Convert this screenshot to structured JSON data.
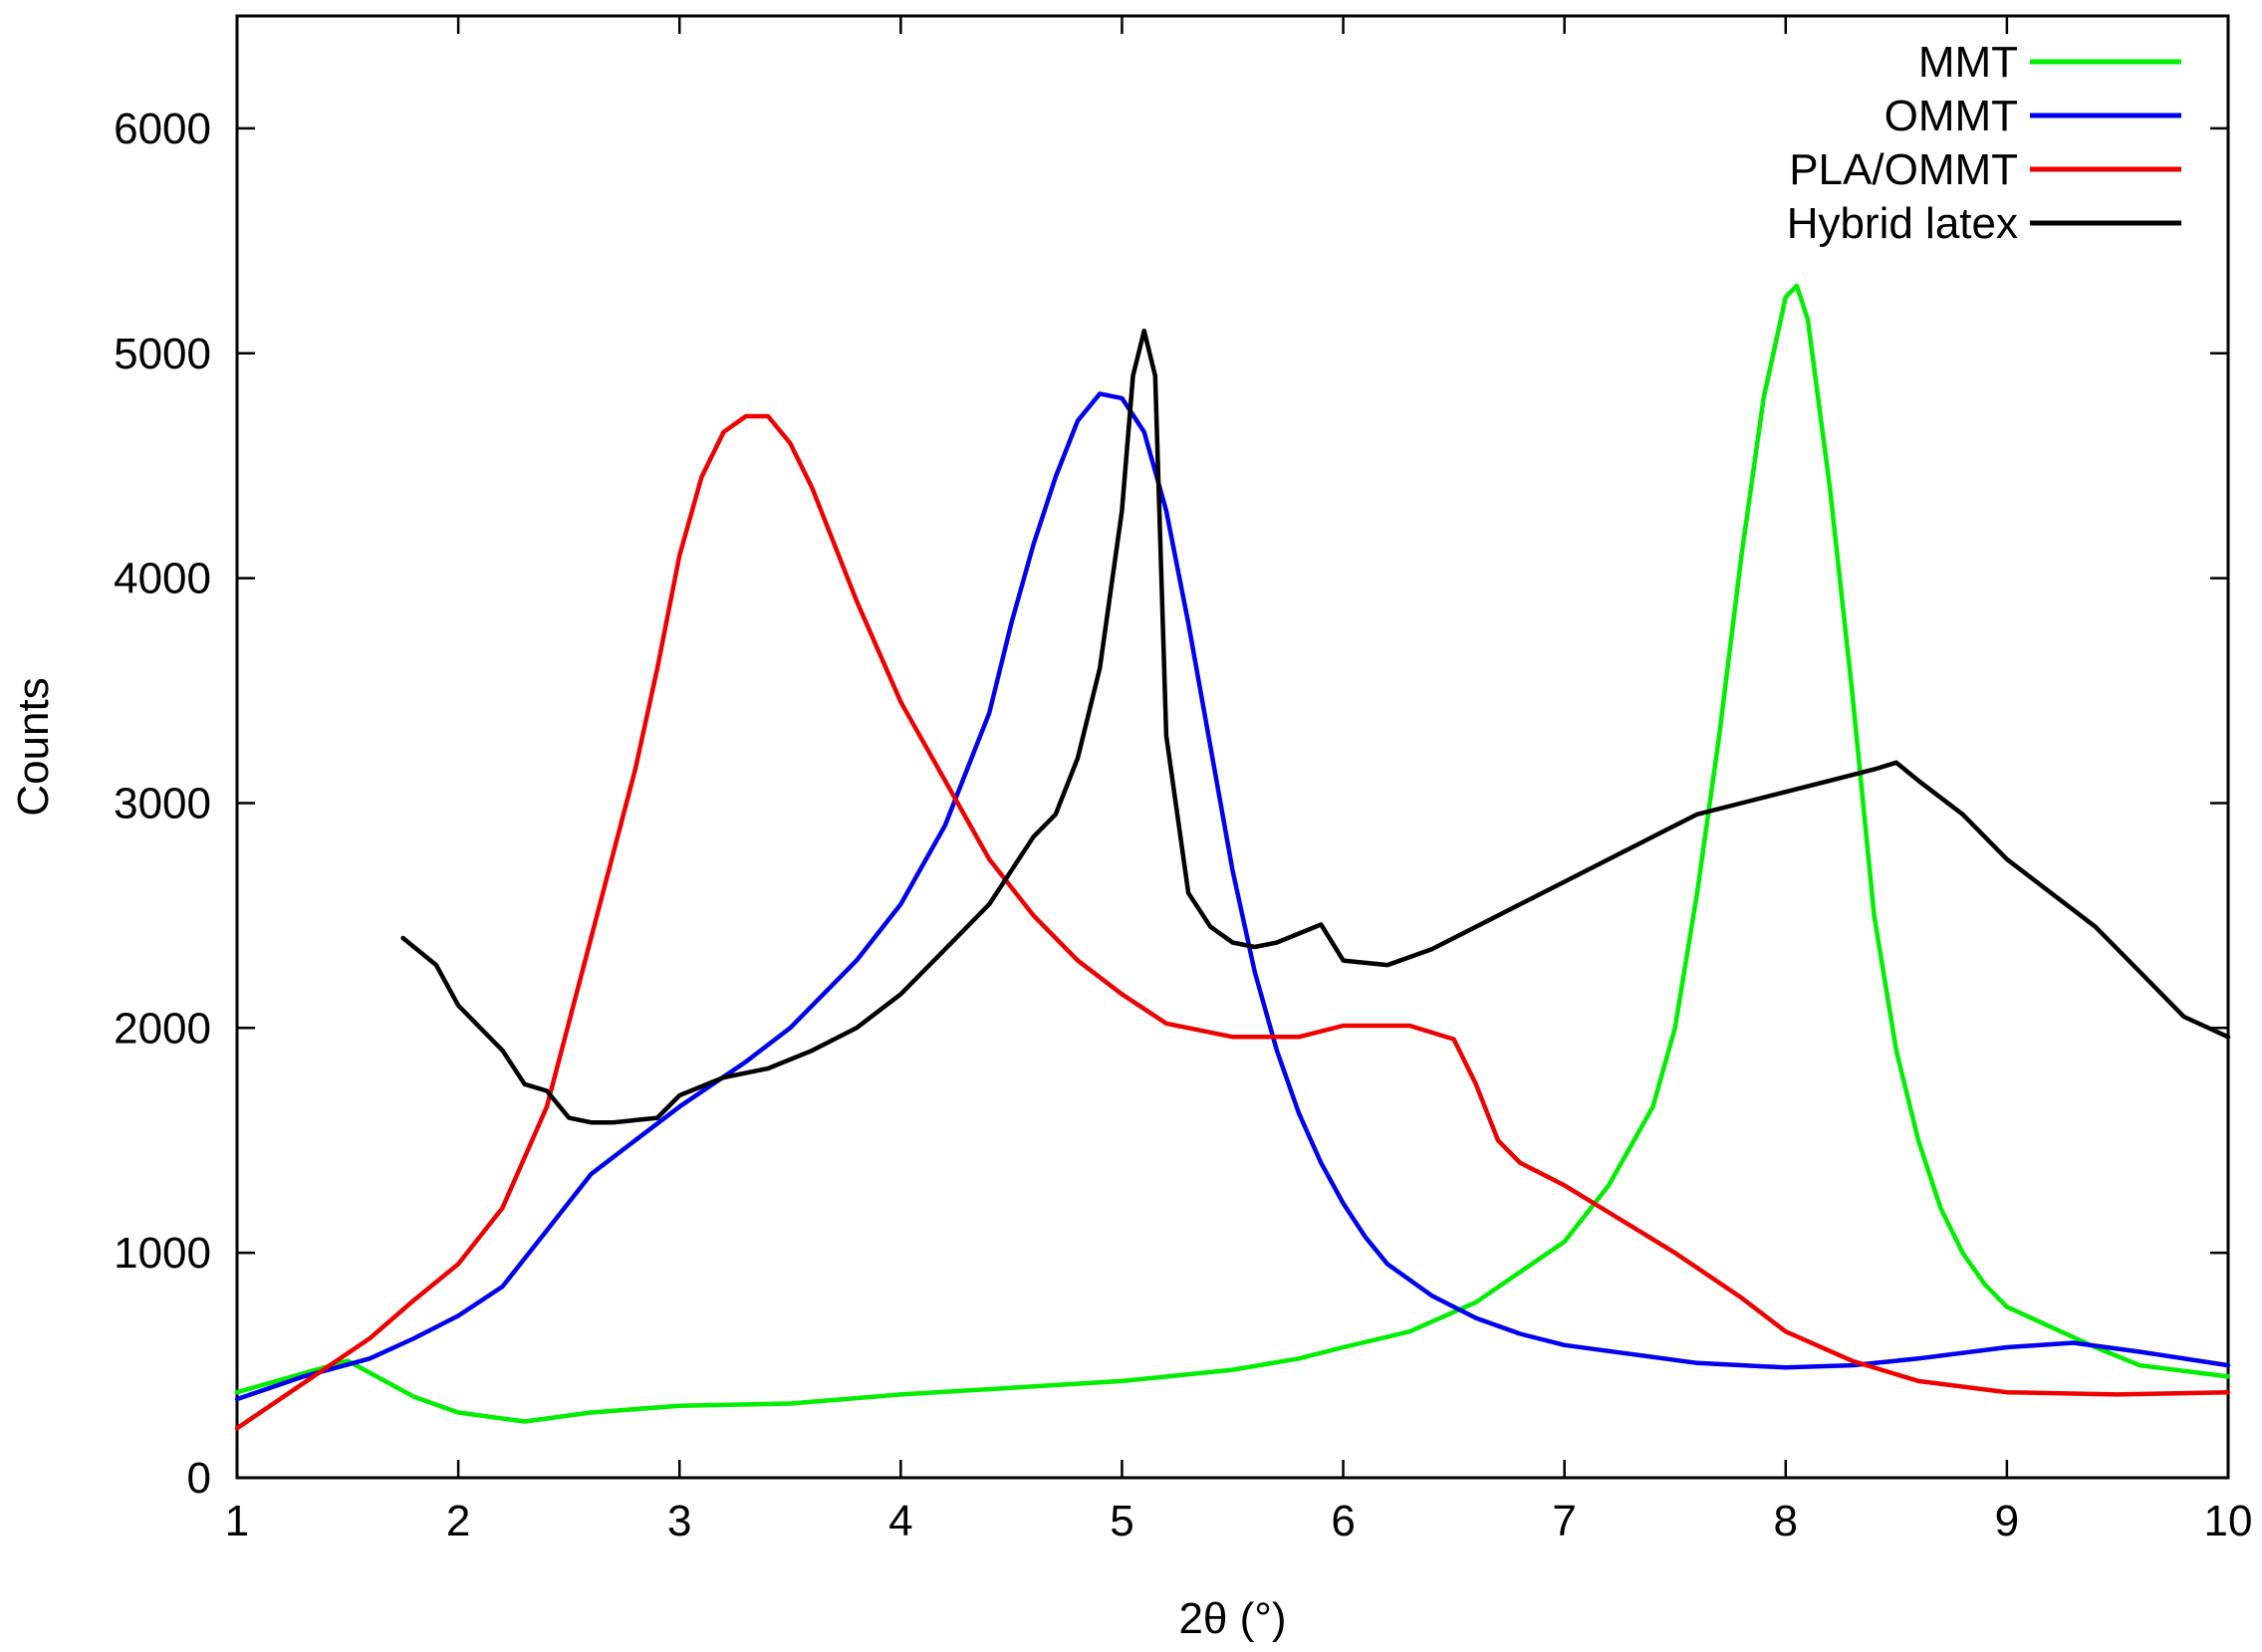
{
  "chart_data": {
    "type": "line",
    "title": "",
    "xlabel": "2θ (°)",
    "ylabel": "Counts",
    "xlim": [
      1,
      10
    ],
    "ylim": [
      0,
      6500
    ],
    "xticks": [
      1,
      2,
      3,
      4,
      5,
      6,
      7,
      8,
      9,
      10
    ],
    "yticks": [
      0,
      1000,
      2000,
      3000,
      4000,
      5000,
      6000
    ],
    "xtick_labels": [
      "1",
      "2",
      "3",
      "4",
      "5",
      "6",
      "7",
      "8",
      "9",
      "10"
    ],
    "ytick_labels": [
      "0",
      "1000",
      "2000",
      "3000",
      "4000",
      "5000",
      "6000"
    ],
    "grid": false,
    "legend_position": "top-right",
    "series": [
      {
        "name": "MMT",
        "color": "#00ee00",
        "x": [
          1.0,
          1.5,
          1.8,
          2.0,
          2.3,
          2.6,
          3.0,
          3.5,
          4.0,
          4.5,
          5.0,
          5.5,
          5.8,
          6.0,
          6.3,
          6.6,
          7.0,
          7.2,
          7.4,
          7.5,
          7.6,
          7.7,
          7.8,
          7.9,
          8.0,
          8.05,
          8.1,
          8.2,
          8.3,
          8.4,
          8.5,
          8.6,
          8.7,
          8.8,
          8.9,
          9.0,
          9.2,
          9.4,
          9.6,
          10.0
        ],
        "y": [
          380,
          520,
          360,
          290,
          250,
          290,
          320,
          330,
          370,
          400,
          430,
          480,
          530,
          580,
          650,
          780,
          1050,
          1300,
          1650,
          2000,
          2600,
          3300,
          4100,
          4800,
          5250,
          5300,
          5150,
          4400,
          3500,
          2500,
          1900,
          1500,
          1200,
          1000,
          860,
          760,
          670,
          580,
          500,
          450
        ]
      },
      {
        "name": "OMMT",
        "color": "#0000ee",
        "x": [
          1.0,
          1.3,
          1.6,
          1.8,
          2.0,
          2.2,
          2.4,
          2.6,
          2.8,
          3.0,
          3.3,
          3.5,
          3.8,
          4.0,
          4.2,
          4.4,
          4.5,
          4.6,
          4.7,
          4.8,
          4.9,
          5.0,
          5.1,
          5.2,
          5.3,
          5.4,
          5.5,
          5.6,
          5.7,
          5.8,
          5.9,
          6.0,
          6.1,
          6.2,
          6.4,
          6.6,
          6.8,
          7.0,
          7.3,
          7.6,
          8.0,
          8.3,
          8.6,
          9.0,
          9.3,
          9.6,
          10.0
        ],
        "y": [
          350,
          450,
          530,
          620,
          720,
          850,
          1100,
          1350,
          1500,
          1650,
          1850,
          2000,
          2300,
          2550,
          2900,
          3400,
          3800,
          4150,
          4450,
          4700,
          4820,
          4800,
          4650,
          4300,
          3800,
          3250,
          2700,
          2250,
          1900,
          1620,
          1400,
          1220,
          1070,
          950,
          810,
          710,
          640,
          590,
          550,
          510,
          490,
          500,
          530,
          580,
          600,
          560,
          500
        ]
      },
      {
        "name": "PLA/OMMT",
        "color": "#ee0000",
        "x": [
          1.0,
          1.3,
          1.6,
          1.8,
          2.0,
          2.2,
          2.4,
          2.6,
          2.8,
          2.9,
          3.0,
          3.1,
          3.2,
          3.3,
          3.4,
          3.5,
          3.6,
          3.8,
          4.0,
          4.2,
          4.4,
          4.6,
          4.8,
          5.0,
          5.2,
          5.5,
          5.8,
          6.0,
          6.3,
          6.5,
          6.6,
          6.7,
          6.8,
          7.0,
          7.2,
          7.5,
          7.8,
          8.0,
          8.3,
          8.6,
          9.0,
          9.5,
          10.0
        ],
        "y": [
          220,
          420,
          620,
          790,
          950,
          1200,
          1650,
          2400,
          3150,
          3600,
          4100,
          4450,
          4650,
          4720,
          4720,
          4600,
          4400,
          3900,
          3450,
          3100,
          2750,
          2500,
          2300,
          2150,
          2020,
          1960,
          1960,
          2010,
          2010,
          1950,
          1750,
          1500,
          1400,
          1300,
          1180,
          1000,
          800,
          650,
          520,
          430,
          380,
          370,
          380
        ]
      },
      {
        "name": "Hybrid latex",
        "color": "#000000",
        "x": [
          1.75,
          1.9,
          2.0,
          2.1,
          2.2,
          2.3,
          2.4,
          2.5,
          2.6,
          2.7,
          2.8,
          2.9,
          3.0,
          3.2,
          3.4,
          3.6,
          3.8,
          4.0,
          4.2,
          4.4,
          4.5,
          4.6,
          4.7,
          4.8,
          4.9,
          5.0,
          5.05,
          5.1,
          5.15,
          5.2,
          5.3,
          5.4,
          5.5,
          5.6,
          5.7,
          5.8,
          5.9,
          6.0,
          6.2,
          6.4,
          6.6,
          6.8,
          7.0,
          7.2,
          7.4,
          7.6,
          7.8,
          8.0,
          8.2,
          8.4,
          8.5,
          8.6,
          8.8,
          9.0,
          9.2,
          9.4,
          9.6,
          9.8,
          10.0
        ],
        "y": [
          2400,
          2280,
          2100,
          2000,
          1900,
          1750,
          1720,
          1600,
          1580,
          1580,
          1590,
          1600,
          1700,
          1780,
          1820,
          1900,
          2000,
          2150,
          2350,
          2550,
          2700,
          2850,
          2950,
          3200,
          3600,
          4300,
          4900,
          5100,
          4900,
          3300,
          2600,
          2450,
          2380,
          2360,
          2380,
          2420,
          2460,
          2300,
          2280,
          2350,
          2450,
          2550,
          2650,
          2750,
          2850,
          2950,
          3000,
          3050,
          3100,
          3150,
          3180,
          3100,
          2950,
          2750,
          2600,
          2450,
          2250,
          2050,
          1960
        ]
      }
    ]
  }
}
